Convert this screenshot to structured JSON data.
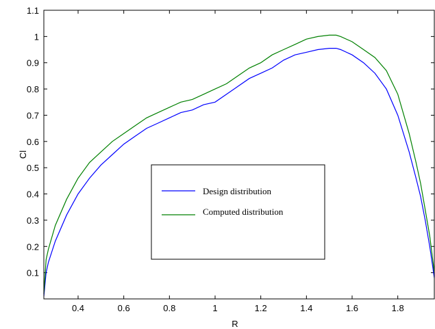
{
  "chart_data": {
    "type": "line",
    "title": "",
    "xlabel": "R",
    "ylabel": "Cl",
    "xlim": [
      0.25,
      1.96
    ],
    "ylim": [
      0,
      1.1
    ],
    "x_ticks": [
      0.4,
      0.6,
      0.8,
      1,
      1.2,
      1.4,
      1.6,
      1.8
    ],
    "x_tick_labels": [
      "0.4",
      "0.6",
      "0.8",
      "1",
      "1.2",
      "1.4",
      "1.6",
      "1.8"
    ],
    "y_ticks": [
      0.1,
      0.2,
      0.3,
      0.4,
      0.5,
      0.6,
      0.7,
      0.8,
      0.9,
      1,
      1.1
    ],
    "y_tick_labels": [
      "0.1",
      "0.2",
      "0.3",
      "0.4",
      "0.5",
      "0.6",
      "0.7",
      "0.8",
      "0.9",
      "1",
      "1.1"
    ],
    "grid": false,
    "legend_position": "center",
    "series": [
      {
        "name": "Design distribution",
        "color": "#0000ff",
        "x": [
          0.25,
          0.26,
          0.27,
          0.3,
          0.35,
          0.4,
          0.45,
          0.5,
          0.55,
          0.6,
          0.65,
          0.7,
          0.75,
          0.8,
          0.85,
          0.9,
          0.95,
          1.0,
          1.05,
          1.1,
          1.15,
          1.2,
          1.25,
          1.3,
          1.35,
          1.4,
          1.45,
          1.5,
          1.53,
          1.55,
          1.6,
          1.65,
          1.7,
          1.75,
          1.8,
          1.85,
          1.88,
          1.9,
          1.92,
          1.94,
          1.95,
          1.96
        ],
        "y": [
          0.01,
          0.1,
          0.14,
          0.22,
          0.32,
          0.4,
          0.46,
          0.51,
          0.55,
          0.59,
          0.62,
          0.65,
          0.67,
          0.69,
          0.71,
          0.72,
          0.74,
          0.75,
          0.78,
          0.81,
          0.84,
          0.86,
          0.88,
          0.91,
          0.93,
          0.94,
          0.95,
          0.955,
          0.955,
          0.95,
          0.93,
          0.9,
          0.86,
          0.8,
          0.7,
          0.56,
          0.46,
          0.39,
          0.3,
          0.2,
          0.14,
          0.08
        ]
      },
      {
        "name": "Computed distribution",
        "color": "#008000",
        "x": [
          0.25,
          0.26,
          0.27,
          0.3,
          0.35,
          0.4,
          0.45,
          0.5,
          0.55,
          0.6,
          0.65,
          0.7,
          0.75,
          0.8,
          0.85,
          0.9,
          0.95,
          1.0,
          1.05,
          1.1,
          1.15,
          1.2,
          1.25,
          1.3,
          1.35,
          1.4,
          1.45,
          1.5,
          1.53,
          1.55,
          1.6,
          1.65,
          1.7,
          1.75,
          1.8,
          1.85,
          1.88,
          1.9,
          1.92,
          1.94,
          1.95,
          1.96
        ],
        "y": [
          0.02,
          0.15,
          0.19,
          0.28,
          0.38,
          0.46,
          0.52,
          0.56,
          0.6,
          0.63,
          0.66,
          0.69,
          0.71,
          0.73,
          0.75,
          0.76,
          0.78,
          0.8,
          0.82,
          0.85,
          0.88,
          0.9,
          0.93,
          0.95,
          0.97,
          0.99,
          1.0,
          1.005,
          1.005,
          1.0,
          0.98,
          0.95,
          0.92,
          0.87,
          0.78,
          0.63,
          0.52,
          0.44,
          0.34,
          0.24,
          0.17,
          0.1
        ]
      }
    ]
  }
}
